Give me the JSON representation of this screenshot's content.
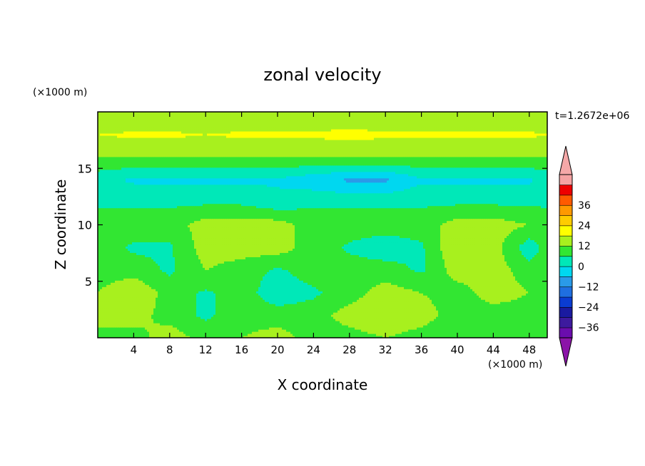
{
  "chart_data": {
    "type": "heatmap",
    "title": "zonal velocity",
    "xlabel": "X coordinate",
    "ylabel": "Z coordinate",
    "x_units": "(×1000 m)",
    "y_units": "(×1000 m)",
    "time_label": "t=1.2672e+06",
    "xlim": [
      0,
      50
    ],
    "ylim": [
      0,
      20
    ],
    "x_ticks": [
      4,
      8,
      12,
      16,
      20,
      24,
      28,
      32,
      36,
      40,
      44,
      48
    ],
    "y_ticks": [
      5,
      10,
      15
    ],
    "colorbar": {
      "ticks": [
        "36",
        "24",
        "12",
        "0",
        "−12",
        "−24",
        "−36"
      ],
      "levels": [
        -42,
        -36,
        -30,
        -24,
        -18,
        -12,
        -6,
        0,
        6,
        12,
        18,
        24,
        30,
        36,
        42
      ],
      "colors": [
        "#6a0dad",
        "#3d1a9e",
        "#1a1aa0",
        "#0a3cd2",
        "#1f6fe0",
        "#2a9ae8",
        "#00d7f0",
        "#00e8b8",
        "#32e632",
        "#a8f01e",
        "#ffff00",
        "#ffcc00",
        "#ff9900",
        "#ff5a00",
        "#ee0000",
        "#f5a3a3"
      ],
      "under_color": "#8b14a8",
      "over_color": "#f5a8a8"
    },
    "contour_data_lattice": {
      "grid_x": [
        0,
        4,
        8,
        12,
        16,
        20,
        24,
        28,
        32,
        36,
        40,
        44,
        48,
        50
      ],
      "grid_y": [
        0,
        2,
        4,
        6,
        8,
        10,
        12,
        14,
        16,
        18,
        20
      ],
      "values": [
        [
          6,
          3,
          10,
          3,
          6,
          9,
          3,
          3,
          6,
          3,
          0,
          3,
          3,
          3
        ],
        [
          6,
          9,
          3,
          -1,
          3,
          3,
          3,
          9,
          12,
          9,
          3,
          3,
          3,
          3
        ],
        [
          6,
          12,
          3,
          -1,
          3,
          -4,
          -1,
          3,
          9,
          6,
          3,
          9,
          6,
          3
        ],
        [
          3,
          3,
          -1,
          6,
          3,
          -1,
          3,
          3,
          3,
          -1,
          9,
          9,
          3,
          3
        ],
        [
          3,
          -1,
          -1,
          9,
          9,
          9,
          3,
          -1,
          -4,
          -1,
          12,
          9,
          -4,
          3
        ],
        [
          3,
          3,
          3,
          9,
          9,
          9,
          3,
          3,
          3,
          3,
          9,
          9,
          6,
          3
        ],
        [
          -1,
          -1,
          -1,
          -1,
          -1,
          -4,
          -1,
          -1,
          -1,
          -1,
          -1,
          -1,
          -1,
          -1
        ],
        [
          -4,
          -7,
          -7,
          -7,
          -7,
          -7,
          -10,
          -13,
          -13,
          -7,
          -7,
          -7,
          -7,
          -4
        ],
        [
          6,
          6,
          6,
          6,
          6,
          6,
          6,
          6,
          6,
          6,
          6,
          6,
          6,
          6
        ],
        [
          12,
          13,
          13,
          12,
          13,
          13,
          13,
          14,
          13,
          13,
          13,
          13,
          13,
          12
        ],
        [
          6,
          6,
          6,
          6,
          6,
          6,
          6,
          6,
          6,
          6,
          6,
          6,
          6,
          6
        ]
      ]
    }
  }
}
